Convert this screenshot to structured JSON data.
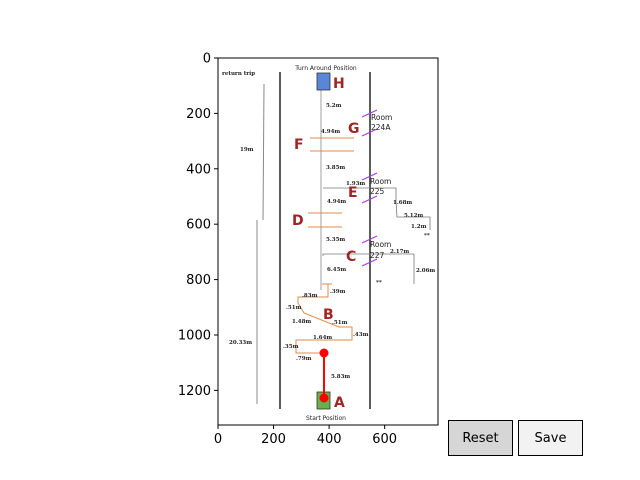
{
  "axes": {
    "xlim": [
      0,
      792
    ],
    "ylim": [
      1325,
      0
    ],
    "xticks": [
      "0",
      "200",
      "400",
      "600"
    ],
    "xtick_values": [
      0,
      200,
      400,
      600
    ],
    "yticks": [
      "0",
      "200",
      "400",
      "600",
      "800",
      "1000",
      "1200"
    ],
    "ytick_values": [
      0,
      200,
      400,
      600,
      800,
      1000,
      1200
    ]
  },
  "map": {
    "top_label": "Turn Around Position",
    "bottom_label": "Start Position",
    "return_trip": "return trip",
    "side_labels": {
      "left_upper": "19m",
      "left_lower": "20.33m"
    },
    "waypoints": {
      "A": "A",
      "B": "B",
      "C": "C",
      "D": "D",
      "E": "E",
      "F": "F",
      "G": "G",
      "H": "H"
    },
    "rooms": [
      {
        "name": "Room",
        "number": "224A"
      },
      {
        "name": "Room",
        "number": "225"
      },
      {
        "name": "Room",
        "number": "227"
      }
    ],
    "distances": {
      "d_5_2": "5.2m",
      "d_4_94a": "4.94m",
      "d_3_85": "3.85m",
      "d_1_93": "1.93m",
      "d_4_94b": "4.94m",
      "d_1_68": "1.68m",
      "d_5_12": "5.12m",
      "d_1_2": "1.2m",
      "d_5_35": "5.35m",
      "d_2_17": "2.17m",
      "d_6_45": "6.45m",
      "d_2_06": "2.06m",
      "d_83": ".83m",
      "d_39": ".39m",
      "d_51a": ".51m",
      "d_1_48": "1.48m",
      "d_51b": ".51m",
      "d_43": ".43m",
      "d_1_64": "1.64m",
      "d_35": ".35m",
      "d_79": ".79m",
      "d_5_83": "5.83m",
      "star1": "**",
      "star2": "**"
    }
  },
  "selection": {
    "color": "#ff0000",
    "start": [
      380,
      1060
    ],
    "end": [
      380,
      1220
    ]
  },
  "buttons": {
    "reset": "Reset",
    "save": "Save"
  },
  "colors": {
    "reset_bg": "#d6d6d6",
    "save_bg": "#f2f2f2",
    "marker_H": "#5b86d6",
    "marker_A": "#6ab04c",
    "path": "#e08a4a",
    "room_door": "#a63de0"
  }
}
